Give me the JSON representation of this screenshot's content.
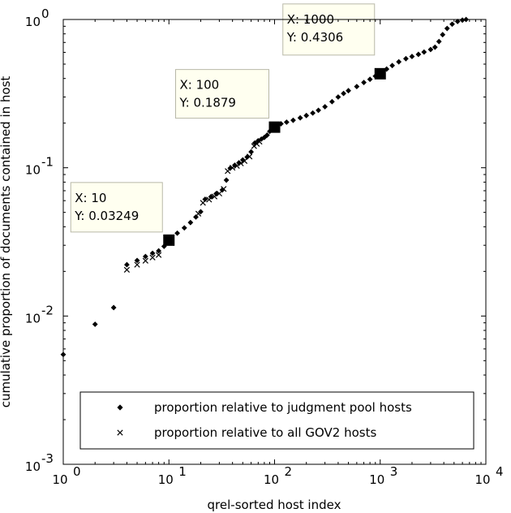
{
  "chart_data": {
    "type": "scatter",
    "title": "",
    "xlabel": "qrel-sorted host index",
    "ylabel": "cumulative proportion of documents contained in host",
    "xscale": "log",
    "yscale": "log",
    "xlim": [
      1,
      10000
    ],
    "ylim": [
      0.001,
      1
    ],
    "x_ticks": [
      {
        "value": 1,
        "base": "10",
        "exp": "0"
      },
      {
        "value": 10,
        "base": "10",
        "exp": "1"
      },
      {
        "value": 100,
        "base": "10",
        "exp": "2"
      },
      {
        "value": 1000,
        "base": "10",
        "exp": "3"
      },
      {
        "value": 10000,
        "base": "10",
        "exp": "4"
      }
    ],
    "y_ticks": [
      {
        "value": 0.001,
        "base": "10",
        "exp": "-3"
      },
      {
        "value": 0.01,
        "base": "10",
        "exp": "-2"
      },
      {
        "value": 0.1,
        "base": "10",
        "exp": "-1"
      },
      {
        "value": 1,
        "base": "10",
        "exp": "0"
      }
    ],
    "grid": false,
    "legend_position": "bottom",
    "series": [
      {
        "name": "proportion relative to judgment pool hosts",
        "marker": "diamond",
        "color": "#000000",
        "points": [
          [
            1,
            0.0055
          ],
          [
            2,
            0.0088
          ],
          [
            3,
            0.0114
          ],
          [
            4,
            0.0222
          ],
          [
            5,
            0.0237
          ],
          [
            6,
            0.0252
          ],
          [
            7,
            0.0265
          ],
          [
            8,
            0.0275
          ],
          [
            9,
            0.0295
          ],
          [
            10,
            0.03249
          ],
          [
            12,
            0.0362
          ],
          [
            14,
            0.0393
          ],
          [
            16,
            0.0427
          ],
          [
            18,
            0.0465
          ],
          [
            20,
            0.0505
          ],
          [
            22,
            0.0613
          ],
          [
            25,
            0.0638
          ],
          [
            28,
            0.0668
          ],
          [
            32,
            0.0708
          ],
          [
            35,
            0.0825
          ],
          [
            38,
            0.0993
          ],
          [
            42,
            0.104
          ],
          [
            46,
            0.108
          ],
          [
            50,
            0.113
          ],
          [
            55,
            0.118
          ],
          [
            60,
            0.128
          ],
          [
            65,
            0.147
          ],
          [
            70,
            0.152
          ],
          [
            75,
            0.156
          ],
          [
            80,
            0.16
          ],
          [
            85,
            0.166
          ],
          [
            90,
            0.176
          ],
          [
            100,
            0.1879
          ],
          [
            115,
            0.198
          ],
          [
            130,
            0.203
          ],
          [
            150,
            0.209
          ],
          [
            175,
            0.217
          ],
          [
            200,
            0.225
          ],
          [
            230,
            0.234
          ],
          [
            260,
            0.244
          ],
          [
            300,
            0.258
          ],
          [
            350,
            0.279
          ],
          [
            400,
            0.3
          ],
          [
            450,
            0.317
          ],
          [
            500,
            0.331
          ],
          [
            600,
            0.353
          ],
          [
            700,
            0.376
          ],
          [
            800,
            0.395
          ],
          [
            900,
            0.415
          ],
          [
            1000,
            0.4306
          ],
          [
            1150,
            0.463
          ],
          [
            1300,
            0.489
          ],
          [
            1500,
            0.518
          ],
          [
            1750,
            0.544
          ],
          [
            2000,
            0.563
          ],
          [
            2300,
            0.582
          ],
          [
            2600,
            0.603
          ],
          [
            3000,
            0.627
          ],
          [
            3300,
            0.65
          ],
          [
            3600,
            0.71
          ],
          [
            3900,
            0.79
          ],
          [
            4300,
            0.87
          ],
          [
            4800,
            0.93
          ],
          [
            5400,
            0.97
          ],
          [
            6000,
            0.99
          ],
          [
            6500,
            1.0
          ]
        ]
      },
      {
        "name": "proportion relative to all GOV2 hosts",
        "marker": "x",
        "color": "#000000",
        "points": [
          [
            4,
            0.0205
          ],
          [
            5,
            0.0222
          ],
          [
            6,
            0.0236
          ],
          [
            7,
            0.0248
          ],
          [
            8,
            0.0258
          ],
          [
            19,
            0.049
          ],
          [
            21,
            0.058
          ],
          [
            24,
            0.061
          ],
          [
            27,
            0.064
          ],
          [
            30,
            0.067
          ],
          [
            33,
            0.072
          ],
          [
            36,
            0.095
          ],
          [
            40,
            0.1
          ],
          [
            44,
            0.103
          ],
          [
            48,
            0.107
          ],
          [
            52,
            0.111
          ],
          [
            58,
            0.119
          ],
          [
            64,
            0.14
          ],
          [
            68,
            0.145
          ],
          [
            72,
            0.15
          ]
        ]
      }
    ],
    "datatips": [
      {
        "x": 10,
        "y": 0.03249,
        "x_label": "X: 10",
        "y_label": "Y: 0.03249"
      },
      {
        "x": 100,
        "y": 0.1879,
        "x_label": "X: 100",
        "y_label": "Y: 0.1879"
      },
      {
        "x": 1000,
        "y": 0.4306,
        "x_label": "X: 1000",
        "y_label": "Y: 0.4306"
      }
    ],
    "datatip_box_color": "#fffff0"
  }
}
